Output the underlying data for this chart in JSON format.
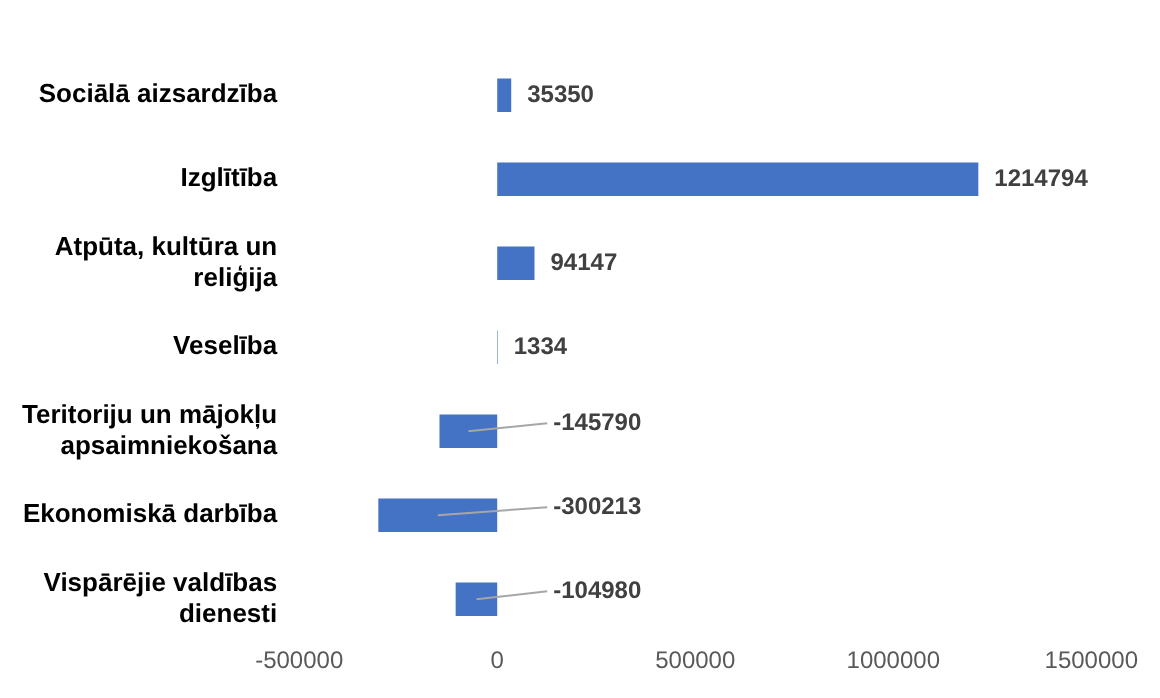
{
  "chart_data": {
    "type": "bar",
    "orientation": "horizontal",
    "categories": [
      "Sociālā aizsardzība",
      "Izglītība",
      "Atpūta, kultūra un reliģija",
      "Veselība",
      "Teritoriju un mājokļu apsaimniekošana",
      "Ekonomiskā darbība",
      "Vispārējie valdības dienesti"
    ],
    "values": [
      35350,
      1214794,
      94147,
      1334,
      -145790,
      -300213,
      -104980
    ],
    "color": "#4472c4",
    "xlim": [
      -500000,
      1500000
    ],
    "xticks": [
      -500000,
      0,
      500000,
      1000000,
      1500000
    ],
    "data_labels": true,
    "grid": false,
    "legend": false
  }
}
